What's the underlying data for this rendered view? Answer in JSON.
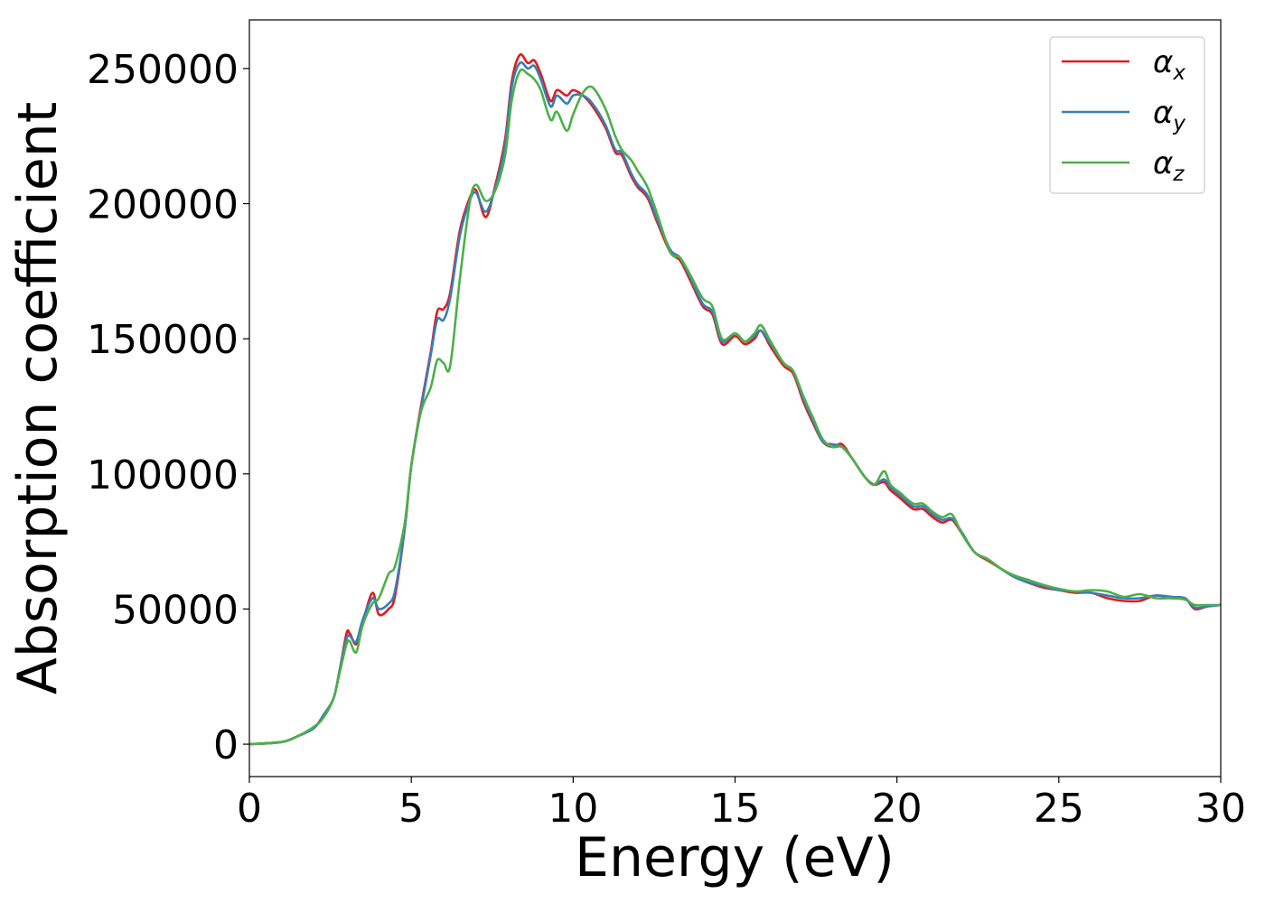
{
  "chart_data": {
    "type": "line",
    "xlabel": "Energy (eV)",
    "ylabel": "Absorption coefficient",
    "xlim": [
      0,
      30
    ],
    "ylim": [
      -12000,
      268000
    ],
    "xticks": [
      0,
      5,
      10,
      15,
      20,
      25,
      30
    ],
    "xtick_labels": [
      "0",
      "5",
      "10",
      "15",
      "20",
      "25",
      "30"
    ],
    "yticks": [
      0,
      50000,
      100000,
      150000,
      200000,
      250000
    ],
    "ytick_labels": [
      "0",
      "50000",
      "100000",
      "150000",
      "200000",
      "250000"
    ],
    "grid": false,
    "legend_position": "top-right",
    "series": [
      {
        "name": "α",
        "subscript": "x",
        "color": "#e41a1c",
        "x": [
          0,
          1,
          1.5,
          2,
          2.3,
          2.6,
          2.8,
          3.0,
          3.1,
          3.3,
          3.5,
          3.8,
          4.0,
          4.3,
          4.5,
          4.8,
          5.0,
          5.3,
          5.6,
          5.8,
          6.0,
          6.2,
          6.5,
          6.8,
          7.0,
          7.3,
          7.6,
          7.9,
          8.1,
          8.35,
          8.6,
          8.8,
          9.0,
          9.3,
          9.5,
          9.8,
          10.0,
          10.3,
          10.6,
          11.0,
          11.3,
          11.5,
          11.8,
          12.0,
          12.3,
          12.6,
          13.0,
          13.3,
          13.6,
          14.0,
          14.3,
          14.6,
          15.0,
          15.3,
          15.6,
          15.8,
          16.1,
          16.5,
          16.8,
          17.1,
          17.4,
          17.7,
          18.0,
          18.3,
          18.6,
          19.0,
          19.3,
          19.6,
          19.8,
          20.1,
          20.5,
          20.8,
          21.1,
          21.4,
          21.7,
          22.0,
          22.4,
          22.8,
          23.2,
          23.6,
          24.0,
          24.5,
          25.0,
          25.5,
          26.0,
          26.5,
          27.0,
          27.5,
          28.0,
          28.5,
          28.9,
          29.2,
          29.6,
          30.0
        ],
        "y": [
          0,
          800,
          3000,
          6000,
          11000,
          17000,
          28000,
          41000,
          41000,
          37000,
          45000,
          56000,
          48000,
          50000,
          55000,
          80000,
          103000,
          125000,
          145000,
          160000,
          161000,
          167000,
          190000,
          202000,
          205000,
          195000,
          207000,
          224000,
          245000,
          255000,
          252000,
          253000,
          248000,
          238000,
          242000,
          240000,
          242000,
          240000,
          236000,
          228000,
          219000,
          218000,
          210000,
          206000,
          202000,
          193000,
          182000,
          179000,
          172000,
          162000,
          159000,
          148000,
          151000,
          148000,
          150000,
          153000,
          147000,
          140000,
          137000,
          127000,
          119000,
          112000,
          110000,
          111000,
          106000,
          99000,
          96000,
          97000,
          94000,
          91000,
          87000,
          87000,
          84000,
          82000,
          83000,
          78000,
          71000,
          68000,
          65000,
          62000,
          60000,
          58000,
          57000,
          56000,
          56000,
          54000,
          53000,
          53000,
          55000,
          54000,
          54000,
          50000,
          51000,
          51500
        ]
      },
      {
        "name": "α",
        "subscript": "y",
        "color": "#377eb8",
        "x": [
          0,
          1,
          1.5,
          2,
          2.3,
          2.6,
          2.8,
          3.0,
          3.1,
          3.3,
          3.5,
          3.8,
          4.0,
          4.3,
          4.5,
          4.8,
          5.0,
          5.3,
          5.6,
          5.8,
          6.0,
          6.2,
          6.5,
          6.8,
          7.0,
          7.3,
          7.6,
          7.9,
          8.1,
          8.35,
          8.6,
          8.8,
          9.0,
          9.3,
          9.5,
          9.8,
          10.0,
          10.3,
          10.6,
          11.0,
          11.3,
          11.5,
          11.8,
          12.0,
          12.3,
          12.6,
          13.0,
          13.3,
          13.6,
          14.0,
          14.3,
          14.6,
          15.0,
          15.3,
          15.6,
          15.8,
          16.1,
          16.5,
          16.8,
          17.1,
          17.4,
          17.7,
          18.0,
          18.3,
          18.6,
          19.0,
          19.3,
          19.6,
          19.8,
          20.1,
          20.5,
          20.8,
          21.1,
          21.4,
          21.7,
          22.0,
          22.4,
          22.8,
          23.2,
          23.6,
          24.0,
          24.5,
          25.0,
          25.5,
          26.0,
          26.5,
          27.0,
          27.5,
          28.0,
          28.5,
          28.9,
          29.2,
          29.6,
          30.0
        ],
        "y": [
          0,
          800,
          3000,
          6000,
          11000,
          17000,
          28000,
          39000,
          40000,
          38000,
          46000,
          54000,
          50000,
          52000,
          57000,
          80000,
          103000,
          124000,
          144000,
          157000,
          157000,
          165000,
          188000,
          201000,
          204000,
          197000,
          206000,
          222000,
          243000,
          252000,
          250000,
          251000,
          246000,
          236000,
          240000,
          237000,
          240000,
          240000,
          237000,
          229000,
          220000,
          219000,
          211000,
          207000,
          203000,
          194000,
          183000,
          180000,
          173000,
          163000,
          160000,
          149000,
          152000,
          149000,
          151000,
          153000,
          148000,
          141000,
          138000,
          128000,
          120000,
          112000,
          111000,
          110000,
          106000,
          99000,
          96000,
          98000,
          95000,
          92000,
          88000,
          88000,
          85000,
          83000,
          83500,
          78500,
          71000,
          68500,
          65000,
          62000,
          60000,
          58500,
          57000,
          56500,
          56000,
          55000,
          54000,
          54000,
          55000,
          54500,
          54000,
          50500,
          51000,
          51500
        ]
      },
      {
        "name": "α",
        "subscript": "z",
        "color": "#4daf4a",
        "x": [
          0,
          1,
          1.5,
          2,
          2.3,
          2.6,
          2.8,
          3.0,
          3.1,
          3.3,
          3.5,
          3.8,
          4.0,
          4.3,
          4.5,
          4.8,
          5.0,
          5.3,
          5.6,
          5.8,
          6.0,
          6.2,
          6.5,
          6.8,
          7.0,
          7.3,
          7.6,
          7.9,
          8.1,
          8.35,
          8.6,
          8.8,
          9.0,
          9.3,
          9.5,
          9.8,
          10.0,
          10.3,
          10.6,
          11.0,
          11.3,
          11.5,
          11.8,
          12.0,
          12.3,
          12.6,
          13.0,
          13.3,
          13.6,
          14.0,
          14.3,
          14.6,
          15.0,
          15.3,
          15.6,
          15.8,
          16.1,
          16.5,
          16.8,
          17.1,
          17.4,
          17.7,
          18.0,
          18.3,
          18.6,
          19.0,
          19.3,
          19.6,
          19.8,
          20.1,
          20.5,
          20.8,
          21.1,
          21.4,
          21.7,
          22.0,
          22.4,
          22.8,
          23.2,
          23.6,
          24.0,
          24.5,
          25.0,
          25.5,
          26.0,
          26.5,
          27.0,
          27.5,
          28.0,
          28.5,
          28.9,
          29.2,
          29.6,
          30.0
        ],
        "y": [
          0,
          800,
          3000,
          6500,
          10000,
          17000,
          27000,
          37000,
          38000,
          34000,
          44000,
          52000,
          54000,
          63000,
          66000,
          82000,
          103000,
          123000,
          132000,
          142000,
          141000,
          140000,
          172000,
          200000,
          207000,
          201000,
          205000,
          218000,
          238000,
          249000,
          248000,
          246000,
          242000,
          231000,
          234000,
          227000,
          233000,
          241000,
          243000,
          235000,
          225000,
          220000,
          216000,
          212000,
          206000,
          196000,
          182000,
          180000,
          174000,
          165000,
          162000,
          150000,
          152000,
          149000,
          152000,
          155000,
          149000,
          141000,
          138000,
          129000,
          121000,
          113000,
          110000,
          110000,
          106000,
          99000,
          96000,
          101000,
          96000,
          93000,
          89000,
          89000,
          86000,
          84000,
          85000,
          78000,
          71000,
          68500,
          65000,
          62500,
          61000,
          59000,
          57500,
          56500,
          57000,
          56500,
          54500,
          55500,
          54000,
          54000,
          53500,
          51500,
          51500,
          51500
        ]
      }
    ]
  }
}
